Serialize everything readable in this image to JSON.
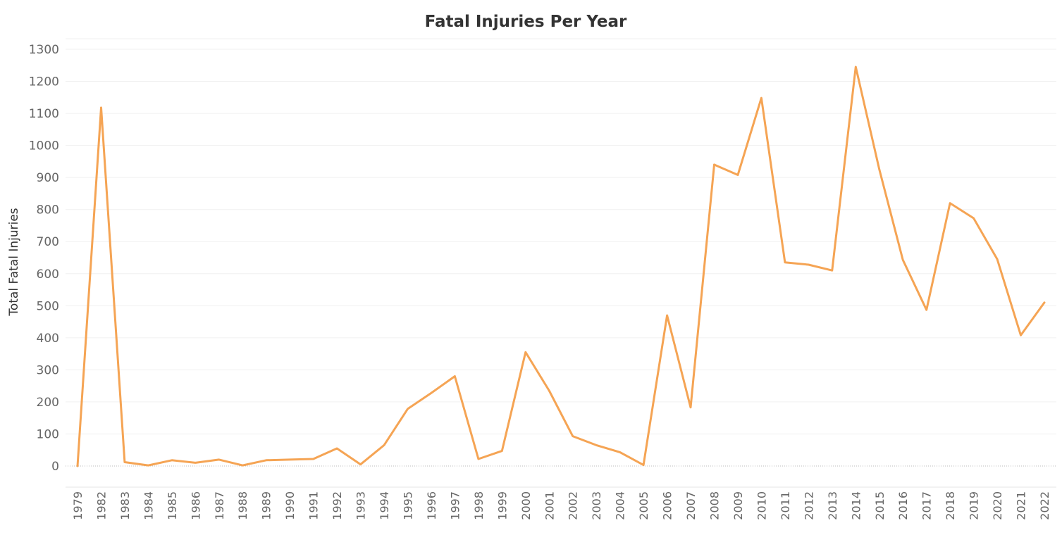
{
  "chart_data": {
    "type": "line",
    "title": "Fatal Injuries Per Year",
    "xlabel": "",
    "ylabel": "Total Fatal Injuries",
    "ylim": [
      -60,
      1330
    ],
    "yticks": [
      0,
      100,
      200,
      300,
      400,
      500,
      600,
      700,
      800,
      900,
      1000,
      1100,
      1200,
      1300
    ],
    "grid": true,
    "legend": "none",
    "line_color": "#f5a454",
    "categories": [
      "1979",
      "1982",
      "1983",
      "1984",
      "1985",
      "1986",
      "1987",
      "1988",
      "1989",
      "1990",
      "1991",
      "1992",
      "1993",
      "1994",
      "1995",
      "1996",
      "1997",
      "1998",
      "1999",
      "2000",
      "2001",
      "2002",
      "2003",
      "2004",
      "2005",
      "2006",
      "2007",
      "2008",
      "2009",
      "2010",
      "2011",
      "2012",
      "2013",
      "2014",
      "2015",
      "2016",
      "2017",
      "2018",
      "2019",
      "2020",
      "2021",
      "2022"
    ],
    "series": [
      {
        "values": [
          0,
          1118,
          12,
          2,
          18,
          10,
          20,
          2,
          18,
          20,
          22,
          55,
          5,
          65,
          178,
          228,
          280,
          22,
          47,
          355,
          235,
          93,
          65,
          43,
          3,
          470,
          183,
          940,
          908,
          1148,
          635,
          628,
          610,
          1245,
          925,
          643,
          487,
          820,
          773,
          645,
          408,
          510
        ]
      }
    ]
  }
}
